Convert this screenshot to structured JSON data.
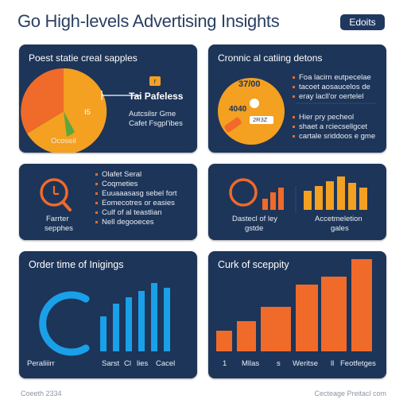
{
  "header": {
    "title": "Go High-levels Advertising Insights",
    "edit_label": "Edoits"
  },
  "colors": {
    "card_bg": "#1d3558",
    "orange": "#f06a2a",
    "amber": "#f4a021",
    "blue": "#1aa0e8",
    "green": "#5aa83c"
  },
  "card1": {
    "title": "Poest statie creal sapples",
    "pie_caption": "Ocoseil",
    "slice_label": "I5",
    "badge_label": "r",
    "heading": "Tai Pafeless",
    "lines": [
      "Autcsilsr Gme",
      "Cafet Fsgpl'ibes"
    ]
  },
  "card2": {
    "title": "Cronnic al catiing detons",
    "value_top": "37/00",
    "value_mid": "4040",
    "badge_label": "2R3Z",
    "top_lines": [
      "Foa lacirn eutpecelae",
      "tacoet aosaucelos de",
      "eray lacll'or oertelel"
    ],
    "bottom_lines": [
      "Hier pry pecheol",
      "shaet a rciecsellgcet",
      "cartale sriddoos e gme"
    ]
  },
  "card3": {
    "caption_lines": [
      "Farrter",
      "sepphes"
    ],
    "items": [
      "Olafet Seral",
      "Coqmeties",
      "Euuaaasasg sebel fort",
      "Eomecotres or easies",
      "Culf of al teastlian",
      "Nell degooeces"
    ]
  },
  "card4": {
    "left_caption": [
      "Dastecl of ley",
      "gstde"
    ],
    "right_caption": [
      "Accetmeletion",
      "gales"
    ]
  },
  "card5": {
    "title": "Order time of Inigings",
    "labels": [
      "Peraliiirr",
      "Sarst",
      "Cl",
      "lies",
      "Cacel"
    ]
  },
  "card6": {
    "title": "Curk of sceppity",
    "labels": [
      "1",
      "Mllas",
      "s",
      "Weritse",
      "ll",
      "Feotfetges"
    ]
  },
  "footer": {
    "left": "Coeeth 2334",
    "right": "Cecteage Preitacl com"
  }
}
